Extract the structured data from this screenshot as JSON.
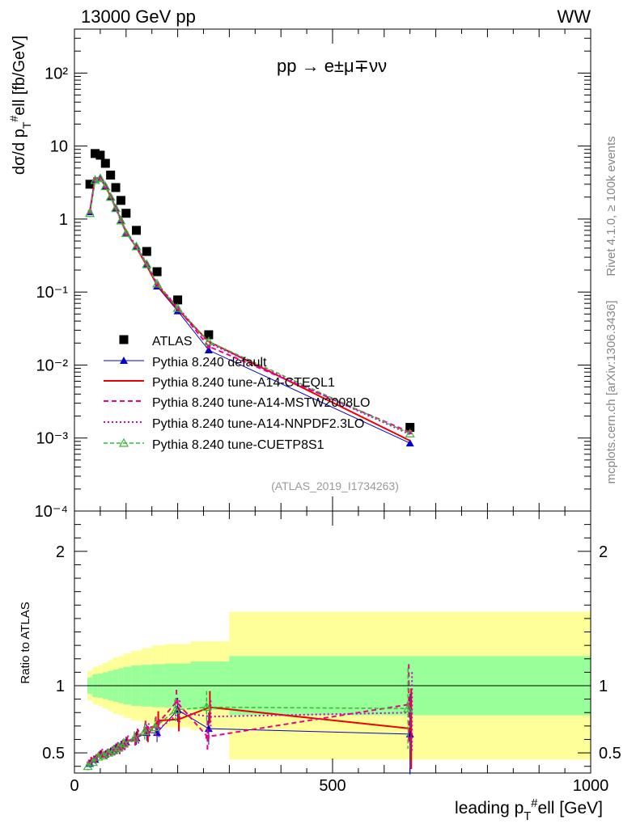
{
  "header": {
    "left": "13000 GeV pp",
    "right": "WW"
  },
  "process_label": "pp → e±μ∓νν",
  "side_labels": {
    "rivet": "Rivet 4.1.0, ≥ 100k events",
    "mcplots": "mcplots.cern.ch [arXiv:1306.3436]"
  },
  "analysis_id": "(ATLAS_2019_I1734263)",
  "colors": {
    "data": "#000000",
    "default": "#0000cc",
    "cteql1": "#ee0000",
    "mstw": "#ee0088",
    "nnpdf": "#cc00cc",
    "cuetp8s1": "#33bb33",
    "band_inner": "#99ff99",
    "band_outer": "#ffff99"
  },
  "chart_data": [
    {
      "type": "line",
      "panel": "main",
      "yscale": "log",
      "ylabel": "dσ/d p_T^#ell [fb/GeV]",
      "xlim": [
        0,
        1000
      ],
      "ylim": [
        0.0001,
        400
      ],
      "ytick_values": [
        0.0001,
        0.001,
        0.01,
        0.1,
        1,
        10,
        100
      ],
      "ytick_labels": [
        "10⁻⁴",
        "10⁻³",
        "10⁻²",
        "10⁻¹",
        "1",
        "10",
        "10²"
      ],
      "legend": [
        "ATLAS",
        "Pythia 8.240 default",
        "Pythia 8.240 tune-A14-CTEQL1",
        "Pythia 8.240 tune-A14-MSTW2008LO",
        "Pythia 8.240 tune-A14-NNPDF2.3LO",
        "Pythia 8.240 tune-CUETP8S1"
      ],
      "x": [
        30,
        40,
        50,
        60,
        70,
        80,
        90,
        100,
        120,
        140,
        160,
        200,
        260,
        650
      ],
      "series": [
        {
          "name": "ATLAS",
          "key": "data",
          "values": [
            3.0,
            7.9,
            7.5,
            5.8,
            4.0,
            2.7,
            1.8,
            1.2,
            0.7,
            0.36,
            0.19,
            0.078,
            0.026,
            0.0014
          ]
        },
        {
          "name": "Pythia 8.240 default",
          "key": "default",
          "values": [
            1.25,
            3.5,
            3.7,
            2.8,
            2.0,
            1.4,
            0.97,
            0.65,
            0.42,
            0.235,
            0.12,
            0.055,
            0.016,
            0.00085
          ]
        },
        {
          "name": "Pythia 8.240 tune-A14-CTEQL1",
          "key": "cteql1",
          "values": [
            1.3,
            3.6,
            3.7,
            2.85,
            2.05,
            1.42,
            0.98,
            0.66,
            0.41,
            0.23,
            0.125,
            0.058,
            0.021,
            0.00092
          ]
        },
        {
          "name": "Pythia 8.240 tune-A14-MSTW2008LO",
          "key": "mstw",
          "values": [
            1.25,
            3.5,
            3.6,
            2.8,
            2.0,
            1.4,
            0.96,
            0.64,
            0.42,
            0.24,
            0.13,
            0.06,
            0.018,
            0.0012
          ]
        },
        {
          "name": "Pythia 8.240 tune-A14-NNPDF2.3LO",
          "key": "nnpdf",
          "values": [
            1.3,
            3.6,
            3.75,
            2.9,
            2.1,
            1.45,
            1.0,
            0.67,
            0.43,
            0.245,
            0.13,
            0.062,
            0.02,
            0.00112
          ]
        },
        {
          "name": "Pythia 8.240 tune-CUETP8S1",
          "key": "cuetp8s1",
          "values": [
            1.2,
            3.4,
            3.6,
            2.8,
            2.0,
            1.4,
            0.95,
            0.64,
            0.42,
            0.24,
            0.13,
            0.06,
            0.021,
            0.00115
          ]
        }
      ]
    },
    {
      "type": "line",
      "panel": "ratio",
      "ylabel": "Ratio to ATLAS",
      "xlabel": "leading p_T^#ell [GeV]",
      "xlim": [
        0,
        1000
      ],
      "ylim": [
        0.35,
        2.3
      ],
      "xticks": [
        0,
        500,
        1000
      ],
      "yticks": [
        0.5,
        1,
        2
      ],
      "band_edges": [
        25,
        35,
        45,
        55,
        65,
        75,
        85,
        95,
        110,
        130,
        150,
        175,
        225,
        300,
        1000
      ],
      "band_inner_half": [
        0.06,
        0.085,
        0.09,
        0.1,
        0.11,
        0.12,
        0.13,
        0.14,
        0.15,
        0.155,
        0.16,
        0.165,
        0.18,
        0.22
      ],
      "band_outer_half": [
        0.11,
        0.14,
        0.15,
        0.17,
        0.19,
        0.21,
        0.22,
        0.24,
        0.26,
        0.28,
        0.3,
        0.31,
        0.33,
        0.55
      ],
      "x": [
        30,
        40,
        50,
        60,
        70,
        80,
        90,
        100,
        120,
        140,
        160,
        200,
        260,
        650
      ],
      "series": [
        {
          "name": "Pythia 8.240 default",
          "key": "default",
          "values": [
            0.42,
            0.45,
            0.49,
            0.49,
            0.51,
            0.53,
            0.55,
            0.58,
            0.61,
            0.65,
            0.65,
            0.82,
            0.68,
            0.64
          ],
          "errors": [
            0.03,
            0.03,
            0.03,
            0.03,
            0.03,
            0.04,
            0.04,
            0.04,
            0.05,
            0.06,
            0.07,
            0.09,
            0.12,
            0.3
          ]
        },
        {
          "name": "Pythia 8.240 tune-A14-CTEQL1",
          "key": "cteql1",
          "values": [
            0.44,
            0.46,
            0.49,
            0.49,
            0.51,
            0.53,
            0.55,
            0.58,
            0.63,
            0.64,
            0.74,
            0.75,
            0.84,
            0.68
          ],
          "errors": [
            0.03,
            0.03,
            0.03,
            0.03,
            0.03,
            0.04,
            0.04,
            0.04,
            0.05,
            0.06,
            0.07,
            0.09,
            0.12,
            0.3
          ]
        },
        {
          "name": "Pythia 8.240 tune-A14-MSTW2008LO",
          "key": "mstw",
          "values": [
            0.42,
            0.45,
            0.48,
            0.48,
            0.5,
            0.52,
            0.53,
            0.56,
            0.6,
            0.68,
            0.7,
            0.88,
            0.62,
            0.86
          ],
          "errors": [
            0.03,
            0.03,
            0.03,
            0.03,
            0.03,
            0.04,
            0.04,
            0.04,
            0.05,
            0.06,
            0.07,
            0.09,
            0.12,
            0.3
          ]
        },
        {
          "name": "Pythia 8.240 tune-A14-NNPDF2.3LO",
          "key": "nnpdf",
          "values": [
            0.43,
            0.46,
            0.5,
            0.5,
            0.52,
            0.54,
            0.56,
            0.59,
            0.62,
            0.66,
            0.68,
            0.8,
            0.77,
            0.8
          ],
          "errors": [
            0.03,
            0.03,
            0.03,
            0.03,
            0.03,
            0.04,
            0.04,
            0.04,
            0.05,
            0.06,
            0.07,
            0.09,
            0.12,
            0.3
          ]
        },
        {
          "name": "Pythia 8.240 tune-CUETP8S1",
          "key": "cuetp8s1",
          "values": [
            0.4,
            0.43,
            0.47,
            0.48,
            0.5,
            0.52,
            0.54,
            0.57,
            0.61,
            0.66,
            0.69,
            0.82,
            0.84,
            0.83
          ],
          "errors": [
            0.03,
            0.03,
            0.03,
            0.03,
            0.03,
            0.04,
            0.04,
            0.04,
            0.05,
            0.06,
            0.07,
            0.09,
            0.12,
            0.3
          ]
        }
      ]
    }
  ]
}
